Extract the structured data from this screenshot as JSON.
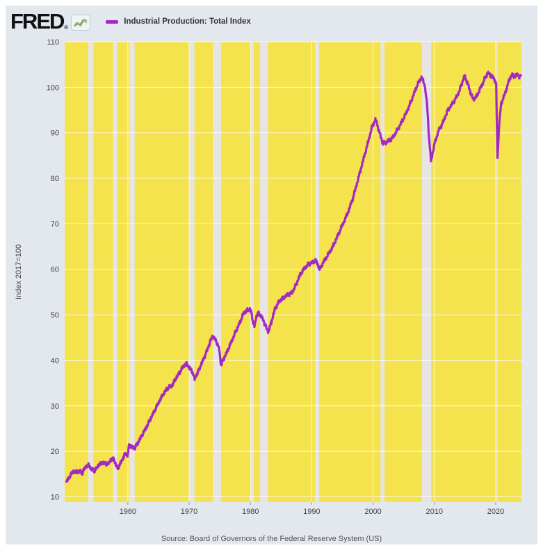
{
  "header": {
    "logo_text": "FRED",
    "registered_mark": "®",
    "chart_icon": "line-chart-icon"
  },
  "legend": {
    "label": "Industrial Production: Total Index",
    "swatch_color": "#a22ac0"
  },
  "y_axis": {
    "title": "Index 2017=100",
    "ticks": [
      10,
      20,
      30,
      40,
      50,
      60,
      70,
      80,
      90,
      100,
      110
    ]
  },
  "x_axis": {
    "ticks": [
      1960,
      1970,
      1980,
      1990,
      2000,
      2010,
      2020
    ]
  },
  "footer": {
    "source": "Source: Board of Governors of the Federal Reserve System (US)"
  },
  "colors": {
    "canvas_bg": "#e3e7ee",
    "plot_bg": "#f5e34e",
    "recession_band": "#e6e5e2",
    "gridline": "rgba(255,255,255,0.72)",
    "line": "#a22ac0",
    "tick_text": "#444444",
    "source_text": "#555555",
    "legend_text": "#333333",
    "logo_text": "#111111",
    "tick_mark": "#999999",
    "icon_green": "#76b041",
    "icon_gray": "#9aa4ae"
  },
  "chart_data": {
    "type": "line",
    "title": "Industrial Production: Total Index",
    "xlabel": "",
    "ylabel": "Index 2017=100",
    "xlim": [
      1949.7,
      2024.2
    ],
    "ylim": [
      8.85,
      110
    ],
    "grid": true,
    "legend_position": "top-left",
    "recessions": [
      [
        1953.54,
        1954.37
      ],
      [
        1957.58,
        1958.29
      ],
      [
        1960.29,
        1961.12
      ],
      [
        1969.96,
        1970.87
      ],
      [
        1973.87,
        1975.21
      ],
      [
        1980.04,
        1980.54
      ],
      [
        1981.54,
        1982.87
      ],
      [
        1990.54,
        1991.21
      ],
      [
        2001.21,
        2001.87
      ],
      [
        2007.96,
        2009.46
      ],
      [
        2020.12,
        2020.29
      ]
    ],
    "series": [
      {
        "name": "Industrial Production: Total Index",
        "color": "#a22ac0",
        "points": [
          [
            1950.0,
            13.3
          ],
          [
            1950.4,
            14.2
          ],
          [
            1950.8,
            15.1
          ],
          [
            1951.2,
            15.6
          ],
          [
            1951.7,
            15.4
          ],
          [
            1952.2,
            15.6
          ],
          [
            1952.6,
            15.2
          ],
          [
            1953.0,
            16.4
          ],
          [
            1953.6,
            17.0
          ],
          [
            1954.1,
            16.0
          ],
          [
            1954.6,
            15.7
          ],
          [
            1955.2,
            16.9
          ],
          [
            1955.8,
            17.5
          ],
          [
            1956.4,
            17.3
          ],
          [
            1956.8,
            17.2
          ],
          [
            1957.2,
            18.1
          ],
          [
            1957.7,
            18.3
          ],
          [
            1958.0,
            17.2
          ],
          [
            1958.35,
            16.2
          ],
          [
            1958.9,
            17.6
          ],
          [
            1959.4,
            19.0
          ],
          [
            1959.7,
            19.6
          ],
          [
            1959.95,
            18.9
          ],
          [
            1960.2,
            21.3
          ],
          [
            1960.8,
            20.9
          ],
          [
            1961.15,
            20.7
          ],
          [
            1961.7,
            22.0
          ],
          [
            1962.3,
            23.5
          ],
          [
            1963.0,
            25.2
          ],
          [
            1963.7,
            27.1
          ],
          [
            1964.5,
            29.3
          ],
          [
            1965.3,
            31.4
          ],
          [
            1966.0,
            33.0
          ],
          [
            1966.6,
            34.0
          ],
          [
            1967.2,
            34.4
          ],
          [
            1967.8,
            35.9
          ],
          [
            1968.4,
            37.2
          ],
          [
            1969.0,
            38.6
          ],
          [
            1969.6,
            39.3
          ],
          [
            1970.1,
            38.2
          ],
          [
            1970.5,
            37.6
          ],
          [
            1970.9,
            35.9
          ],
          [
            1971.4,
            37.3
          ],
          [
            1972.0,
            39.2
          ],
          [
            1972.6,
            41.0
          ],
          [
            1973.2,
            43.2
          ],
          [
            1973.8,
            45.3
          ],
          [
            1974.4,
            44.3
          ],
          [
            1974.9,
            42.5
          ],
          [
            1975.2,
            38.9
          ],
          [
            1975.7,
            40.5
          ],
          [
            1976.3,
            42.2
          ],
          [
            1977.0,
            44.4
          ],
          [
            1977.7,
            46.6
          ],
          [
            1978.3,
            48.4
          ],
          [
            1978.9,
            50.4
          ],
          [
            1979.4,
            50.9
          ],
          [
            1979.9,
            51.2
          ],
          [
            1980.15,
            50.5
          ],
          [
            1980.45,
            48.3
          ],
          [
            1980.65,
            47.4
          ],
          [
            1981.0,
            49.8
          ],
          [
            1981.3,
            50.4
          ],
          [
            1981.8,
            49.6
          ],
          [
            1982.3,
            48.1
          ],
          [
            1982.9,
            46.2
          ],
          [
            1983.4,
            48.3
          ],
          [
            1984.0,
            51.3
          ],
          [
            1984.7,
            53.0
          ],
          [
            1985.4,
            53.8
          ],
          [
            1986.1,
            54.4
          ],
          [
            1986.8,
            54.9
          ],
          [
            1987.4,
            56.5
          ],
          [
            1988.1,
            58.8
          ],
          [
            1988.9,
            60.4
          ],
          [
            1989.6,
            61.2
          ],
          [
            1990.2,
            61.6
          ],
          [
            1990.7,
            61.9
          ],
          [
            1991.3,
            60.0
          ],
          [
            1992.0,
            61.8
          ],
          [
            1992.8,
            63.5
          ],
          [
            1993.6,
            65.4
          ],
          [
            1994.4,
            67.9
          ],
          [
            1995.2,
            70.3
          ],
          [
            1996.0,
            72.8
          ],
          [
            1996.8,
            76.0
          ],
          [
            1997.6,
            80.0
          ],
          [
            1998.4,
            84.0
          ],
          [
            1999.2,
            88.0
          ],
          [
            1999.8,
            91.2
          ],
          [
            2000.4,
            93.0
          ],
          [
            2001.0,
            90.3
          ],
          [
            2001.6,
            87.6
          ],
          [
            2002.2,
            88.0
          ],
          [
            2003.0,
            88.6
          ],
          [
            2003.8,
            90.2
          ],
          [
            2004.6,
            92.2
          ],
          [
            2005.4,
            94.3
          ],
          [
            2006.2,
            96.9
          ],
          [
            2007.0,
            99.8
          ],
          [
            2007.5,
            101.3
          ],
          [
            2007.9,
            102.2
          ],
          [
            2008.4,
            100.6
          ],
          [
            2008.8,
            96.5
          ],
          [
            2009.1,
            89.5
          ],
          [
            2009.45,
            83.7
          ],
          [
            2010.0,
            87.5
          ],
          [
            2010.7,
            90.5
          ],
          [
            2011.4,
            92.3
          ],
          [
            2012.2,
            95.0
          ],
          [
            2013.0,
            96.5
          ],
          [
            2013.8,
            98.3
          ],
          [
            2014.4,
            100.5
          ],
          [
            2014.9,
            102.5
          ],
          [
            2015.4,
            101.0
          ],
          [
            2015.9,
            98.8
          ],
          [
            2016.3,
            97.4
          ],
          [
            2016.9,
            98.0
          ],
          [
            2017.5,
            99.8
          ],
          [
            2018.1,
            101.5
          ],
          [
            2018.7,
            103.2
          ],
          [
            2019.2,
            102.5
          ],
          [
            2019.7,
            102.0
          ],
          [
            2020.08,
            100.8
          ],
          [
            2020.17,
            93.0
          ],
          [
            2020.3,
            84.5
          ],
          [
            2020.6,
            92.5
          ],
          [
            2020.9,
            96.5
          ],
          [
            2021.3,
            97.8
          ],
          [
            2021.8,
            99.8
          ],
          [
            2022.3,
            102.0
          ],
          [
            2022.8,
            102.8
          ],
          [
            2023.2,
            102.3
          ],
          [
            2023.6,
            102.9
          ],
          [
            2023.9,
            102.2
          ],
          [
            2024.1,
            102.6
          ]
        ]
      }
    ]
  }
}
